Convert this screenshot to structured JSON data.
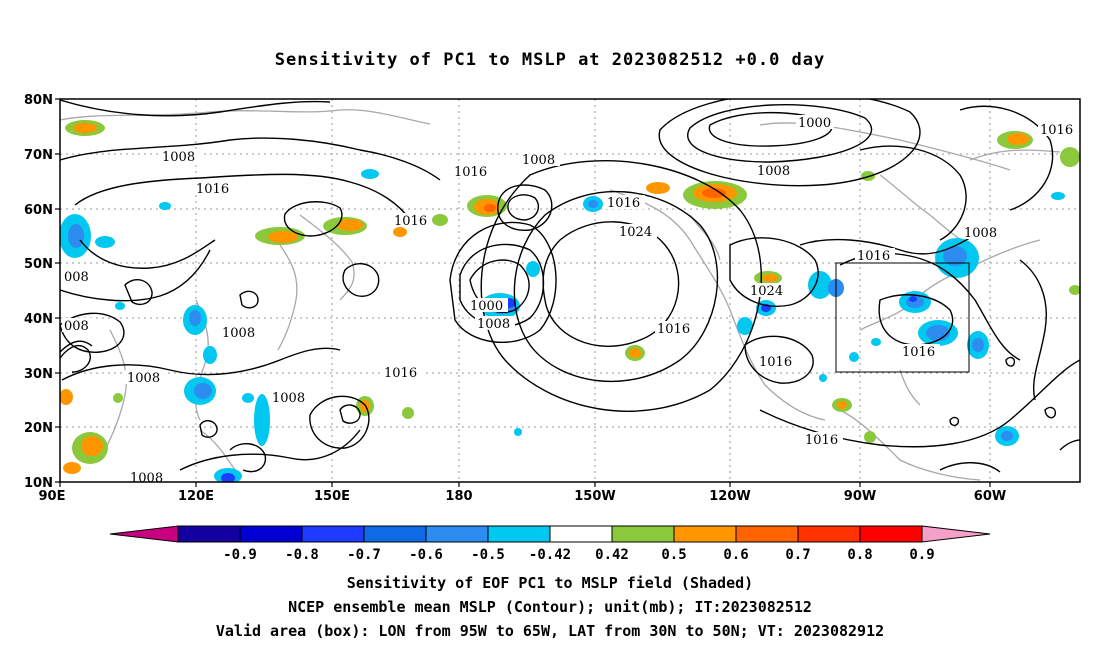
{
  "title": "Sensitivity of PC1 to MSLP at 2023082512 +0.0 day",
  "lat_labels": [
    "80N",
    "70N",
    "60N",
    "50N",
    "40N",
    "30N",
    "20N",
    "10N"
  ],
  "lon_labels": [
    "90E",
    "120E",
    "150E",
    "180",
    "150W",
    "120W",
    "90W",
    "60W"
  ],
  "contour_labels": [
    "1000",
    "1016",
    "1008",
    "1016",
    "1016",
    "1008",
    "1008",
    "1016",
    "1016",
    "1008",
    "1016",
    "1024",
    "1016",
    "008",
    "008",
    "1008",
    "1008",
    "1008",
    "1000",
    "1008",
    "1016",
    "1016",
    "1024",
    "1016",
    "1016",
    "1008",
    "1016",
    "1008"
  ],
  "colorbar": {
    "labels": [
      "-0.9",
      "-0.8",
      "-0.7",
      "-0.6",
      "-0.5",
      "-0.42",
      "0.42",
      "0.5",
      "0.6",
      "0.7",
      "0.8",
      "0.9"
    ],
    "colors": [
      "#c8007f",
      "#1400a0",
      "#0000d2",
      "#1e3cff",
      "#0f6ae6",
      "#2d8cf0",
      "#00c8f0",
      "#ffffff",
      "#8cc83c",
      "#ff9600",
      "#ff6400",
      "#ff3200",
      "#ff0000",
      "#f5a0c8"
    ]
  },
  "captions": {
    "line1": "Sensitivity of EOF PC1 to MSLP field (Shaded)",
    "line2": "NCEP ensemble mean MSLP (Contour); unit(mb); IT:2023082512",
    "line3": "Valid area (box): LON from 95W to 65W, LAT from 30N to 50N; VT: 2023082912"
  }
}
